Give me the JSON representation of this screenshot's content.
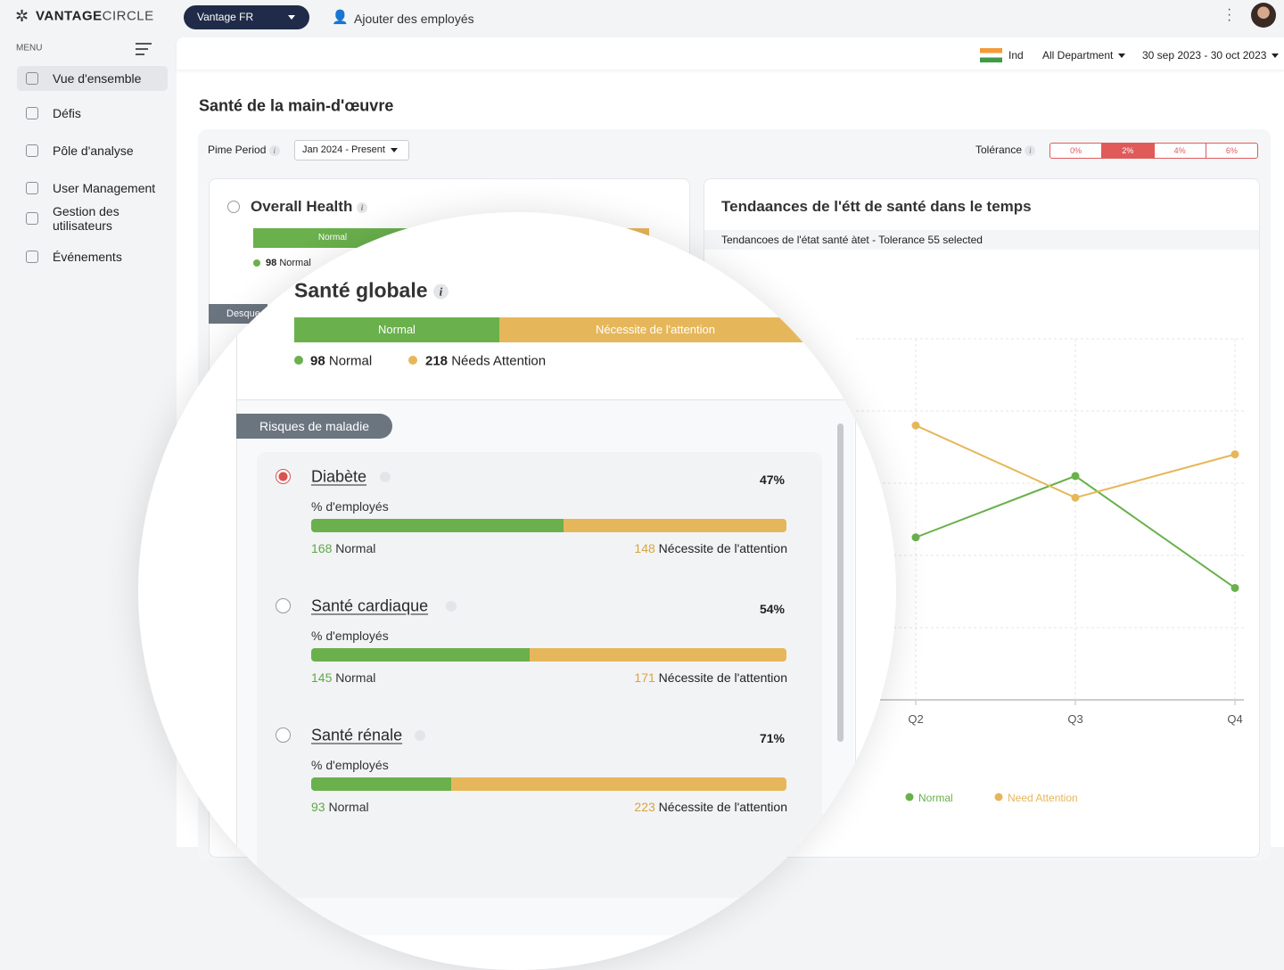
{
  "header": {
    "brand_bold": "VANTAGE",
    "brand_light": "CIRCLE",
    "org": "Vantage FR",
    "add_employees": "Ajouter des employés"
  },
  "sidebar": {
    "menu_label": "MENU",
    "active": 0,
    "items": [
      "Vue d'ensemble",
      "Défis",
      "Pôle d'analyse",
      "User Management",
      "Gestion des utilisateurs",
      "Événements"
    ]
  },
  "filters": {
    "country": "Ind",
    "department": "All Department",
    "date_range": "30 sep 2023 - 30 oct 2023"
  },
  "page_title": "Santé de la main-d'œuvre",
  "period": {
    "label": "Pime Period",
    "value": "Jan 2024 - Present"
  },
  "tolerance": {
    "label": "Tolérance",
    "options": [
      "0%",
      "2%",
      "4%",
      "6%"
    ],
    "selected": 1
  },
  "overall_card": {
    "title": "Overall Health",
    "bar_label": "Normal",
    "count": 98,
    "count_label": "Normal",
    "tab": "Desque"
  },
  "chart_data": {
    "type": "line",
    "title": "Tendaances de l'étt de santé dans le temps",
    "subtitle": "Tendancoes de l'état santé àtet - Tolerance 55 selected",
    "categories": [
      "Q2",
      "Q3",
      "Q4"
    ],
    "series": [
      {
        "name": "Normal",
        "color": "#6ab04c",
        "values": [
          45,
          62,
          31
        ]
      },
      {
        "name": "Need Attention",
        "color": "#e6b75a",
        "values": [
          76,
          56,
          68
        ]
      }
    ],
    "ylim": [
      0,
      100
    ]
  },
  "zoom": {
    "title": "Santé globale",
    "bar_labels": [
      "Normal",
      "Nécessite de l'attention"
    ],
    "legend": [
      {
        "count": 98,
        "label": "Normal"
      },
      {
        "count": 218,
        "label": "Néeds Attention"
      }
    ],
    "section": "Risques de maladie",
    "risks": [
      {
        "name": "Diabète",
        "percent": "47%",
        "caption": "% d'employés",
        "normal": 168,
        "normal_label": "Normal",
        "attention": 148,
        "attention_label": "Nécessite de l'attention",
        "selected": true
      },
      {
        "name": "Santé cardiaque",
        "percent": "54%",
        "caption": "% d'employés",
        "normal": 145,
        "normal_label": "Normal",
        "attention": 171,
        "attention_label": "Nécessite de l'attention",
        "selected": false
      },
      {
        "name": "Santé rénale",
        "percent": "71%",
        "caption": "% d'employés",
        "normal": 93,
        "normal_label": "Normal",
        "attention": 223,
        "attention_label": "Nécessite de l'attention",
        "selected": false
      }
    ]
  }
}
